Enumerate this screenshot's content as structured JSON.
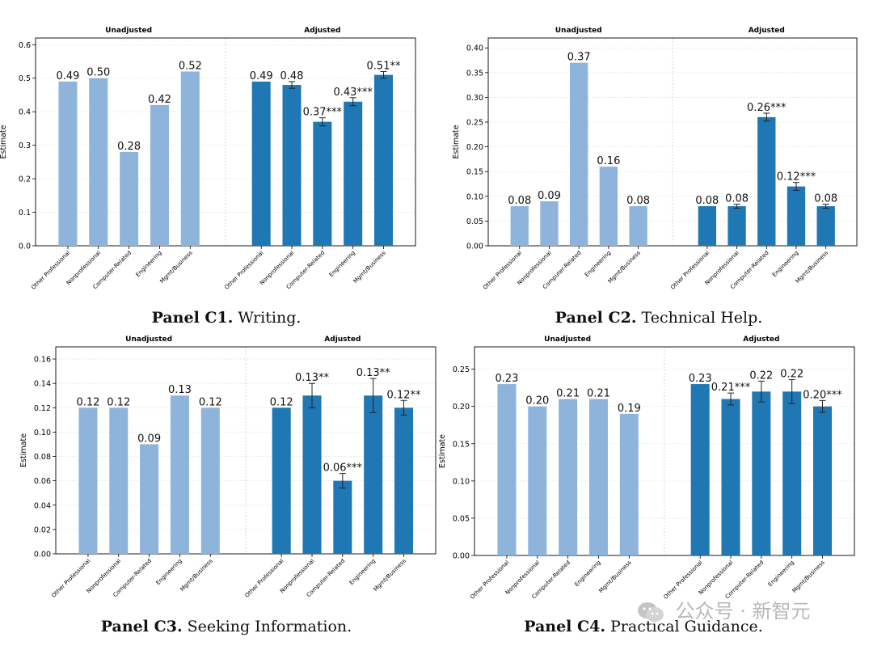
{
  "shared": {
    "group_titles": [
      "Unadjusted",
      "Adjusted"
    ],
    "categories": [
      "Other Professional",
      "Nonprofessional",
      "Computer-Related",
      "Engineering",
      "Mgmt/Business"
    ],
    "ylabel": "Estimate",
    "colors": {
      "unadjusted": "#8fb4dc",
      "adjusted": "#1f77b4"
    }
  },
  "watermark": {
    "text": "公众号 · 新智元"
  },
  "chart_data": [
    {
      "type": "bar",
      "panel_label": "Panel C1.",
      "panel_title": "Writing.",
      "ylim": [
        0,
        0.62
      ],
      "yticks": [
        0.0,
        0.1,
        0.2,
        0.3,
        0.4,
        0.5,
        0.6
      ],
      "tick_labels": [
        "0.0",
        "0.1",
        "0.2",
        "0.3",
        "0.4",
        "0.5",
        "0.6"
      ],
      "unadjusted": [
        0.49,
        0.5,
        0.28,
        0.42,
        0.52
      ],
      "unadjusted_labels": [
        "0.49",
        "0.50",
        "0.28",
        "0.42",
        "0.52"
      ],
      "adjusted": [
        0.49,
        0.48,
        0.37,
        0.43,
        0.51
      ],
      "adjusted_err": [
        0,
        0.01,
        0.012,
        0.012,
        0.01
      ],
      "adjusted_labels": [
        "0.49",
        "0.48",
        "0.37***",
        "0.43***",
        "0.51**"
      ]
    },
    {
      "type": "bar",
      "panel_label": "Panel C2.",
      "panel_title": "Technical Help.",
      "ylim": [
        0,
        0.42
      ],
      "yticks": [
        0.0,
        0.05,
        0.1,
        0.15,
        0.2,
        0.25,
        0.3,
        0.35,
        0.4
      ],
      "tick_labels": [
        "0.00",
        "0.05",
        "0.10",
        "0.15",
        "0.20",
        "0.25",
        "0.30",
        "0.35",
        "0.40"
      ],
      "unadjusted": [
        0.08,
        0.09,
        0.37,
        0.16,
        0.08
      ],
      "unadjusted_labels": [
        "0.08",
        "0.09",
        "0.37",
        "0.16",
        "0.08"
      ],
      "adjusted": [
        0.08,
        0.08,
        0.26,
        0.12,
        0.08
      ],
      "adjusted_err": [
        0,
        0.004,
        0.008,
        0.008,
        0.004
      ],
      "adjusted_labels": [
        "0.08",
        "0.08",
        "0.26***",
        "0.12***",
        "0.08"
      ]
    },
    {
      "type": "bar",
      "panel_label": "Panel C3.",
      "panel_title": "Seeking Information.",
      "ylim": [
        0,
        0.17
      ],
      "yticks": [
        0.0,
        0.02,
        0.04,
        0.06,
        0.08,
        0.1,
        0.12,
        0.14,
        0.16
      ],
      "tick_labels": [
        "0.00",
        "0.02",
        "0.04",
        "0.06",
        "0.08",
        "0.10",
        "0.12",
        "0.14",
        "0.16"
      ],
      "unadjusted": [
        0.12,
        0.12,
        0.09,
        0.13,
        0.12
      ],
      "unadjusted_labels": [
        "0.12",
        "0.12",
        "0.09",
        "0.13",
        "0.12"
      ],
      "adjusted": [
        0.12,
        0.13,
        0.06,
        0.13,
        0.12
      ],
      "adjusted_err": [
        0,
        0.01,
        0.006,
        0.014,
        0.006
      ],
      "adjusted_labels": [
        "0.12",
        "0.13**",
        "0.06***",
        "0.13**",
        "0.12**"
      ]
    },
    {
      "type": "bar",
      "panel_label": "Panel C4.",
      "panel_title": "Practical Guidance.",
      "ylim": [
        0,
        0.28
      ],
      "yticks": [
        0.0,
        0.05,
        0.1,
        0.15,
        0.2,
        0.25
      ],
      "tick_labels": [
        "0.00",
        "0.05",
        "0.10",
        "0.15",
        "0.20",
        "0.25"
      ],
      "unadjusted": [
        0.23,
        0.2,
        0.21,
        0.21,
        0.19
      ],
      "unadjusted_labels": [
        "0.23",
        "0.20",
        "0.21",
        "0.21",
        "0.19"
      ],
      "adjusted": [
        0.23,
        0.21,
        0.22,
        0.22,
        0.2
      ],
      "adjusted_err": [
        0,
        0.008,
        0.014,
        0.016,
        0.008
      ],
      "adjusted_labels": [
        "0.23",
        "0.21***",
        "0.22",
        "0.22",
        "0.20***"
      ]
    }
  ]
}
